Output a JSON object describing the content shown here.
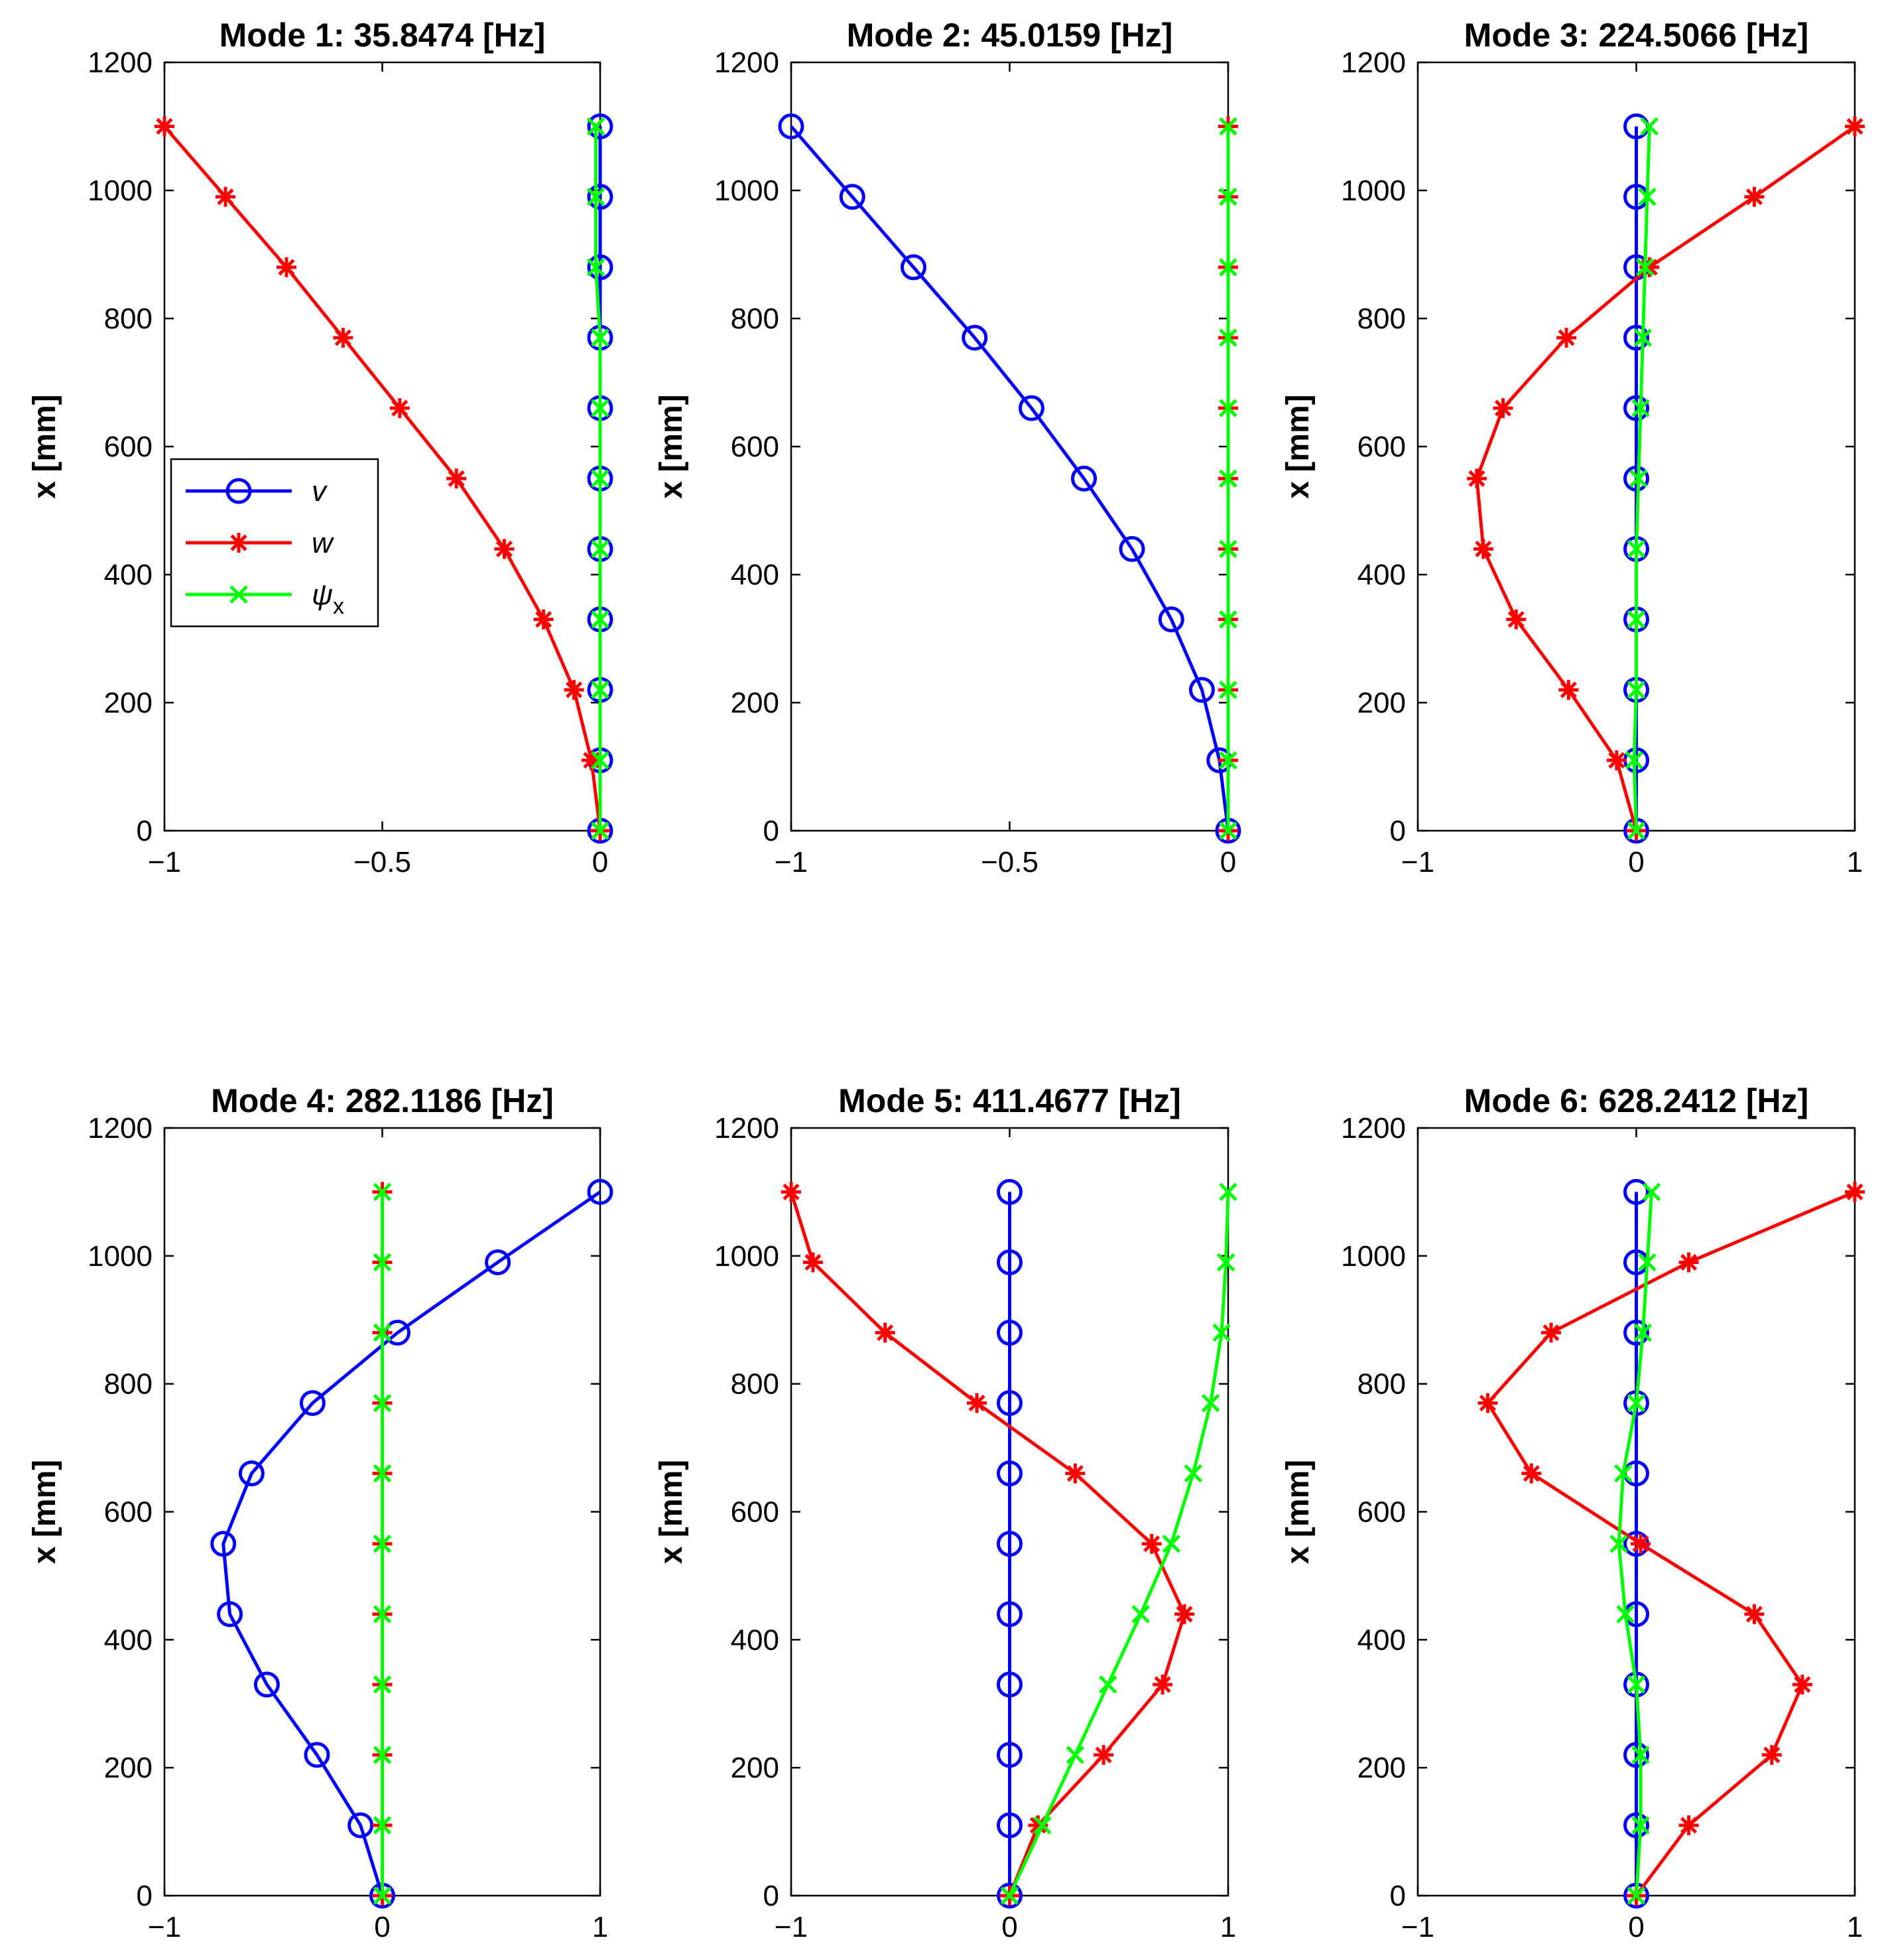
{
  "figure": {
    "colors": {
      "v": "#0000ff",
      "w": "#ff0000",
      "psi_x": "#00ff00",
      "axes": "#000000"
    }
  },
  "legend": {
    "entries": [
      {
        "key": "v",
        "label": "v",
        "marker": "circle"
      },
      {
        "key": "w",
        "label": "w",
        "marker": "asterisk"
      },
      {
        "key": "psi_x",
        "label": "ψ",
        "subscript": "x",
        "marker": "cross"
      }
    ],
    "placement": "left-middle of first subplot"
  },
  "chart_data": [
    {
      "type": "line",
      "title": "Mode 1: 35.8474 [Hz]",
      "ylabel": "x [mm]",
      "xlabel": "",
      "xlim": [
        -1,
        0
      ],
      "ylim": [
        0,
        1200
      ],
      "xticks": [
        -1,
        -0.5,
        0
      ],
      "xtick_labels": [
        "−1",
        "−0.5",
        "0"
      ],
      "yticks": [
        0,
        200,
        400,
        600,
        800,
        1000,
        1200
      ],
      "ytick_labels": [
        "0",
        "200",
        "400",
        "600",
        "800",
        "1000",
        "1200"
      ],
      "x": [
        0,
        110,
        220,
        330,
        440,
        550,
        660,
        770,
        880,
        990,
        1100
      ],
      "show_legend": true,
      "series": [
        {
          "name": "v",
          "key": "v",
          "values": [
            0,
            0,
            0,
            0,
            0,
            0,
            0,
            0,
            0,
            0,
            0
          ]
        },
        {
          "name": "w",
          "key": "w",
          "values": [
            0,
            -0.02,
            -0.06,
            -0.13,
            -0.22,
            -0.33,
            -0.46,
            -0.59,
            -0.72,
            -0.86,
            -1.0
          ]
        },
        {
          "name": "ψx",
          "key": "psi_x",
          "values": [
            0,
            0,
            0,
            0,
            0,
            0,
            0,
            0,
            -0.01,
            -0.01,
            -0.01
          ]
        }
      ]
    },
    {
      "type": "line",
      "title": "Mode 2: 45.0159 [Hz]",
      "ylabel": "x [mm]",
      "xlabel": "",
      "xlim": [
        -1,
        0
      ],
      "ylim": [
        0,
        1200
      ],
      "xticks": [
        -1,
        -0.5,
        0
      ],
      "xtick_labels": [
        "−1",
        "−0.5",
        "0"
      ],
      "yticks": [
        0,
        200,
        400,
        600,
        800,
        1000,
        1200
      ],
      "ytick_labels": [
        "0",
        "200",
        "400",
        "600",
        "800",
        "1000",
        "1200"
      ],
      "x": [
        0,
        110,
        220,
        330,
        440,
        550,
        660,
        770,
        880,
        990,
        1100
      ],
      "show_legend": false,
      "series": [
        {
          "name": "v",
          "key": "v",
          "values": [
            0,
            -0.02,
            -0.06,
            -0.13,
            -0.22,
            -0.33,
            -0.45,
            -0.58,
            -0.72,
            -0.86,
            -1.0
          ]
        },
        {
          "name": "w",
          "key": "w",
          "values": [
            0,
            0,
            0,
            0,
            0,
            0,
            0,
            0,
            0,
            0,
            0
          ]
        },
        {
          "name": "ψx",
          "key": "psi_x",
          "values": [
            0,
            0,
            0,
            0,
            0,
            0,
            0,
            0,
            0,
            0,
            0
          ]
        }
      ]
    },
    {
      "type": "line",
      "title": "Mode 3: 224.5066 [Hz]",
      "ylabel": "x [mm]",
      "xlabel": "",
      "xlim": [
        -1,
        1
      ],
      "ylim": [
        0,
        1200
      ],
      "xticks": [
        -1,
        0,
        1
      ],
      "xtick_labels": [
        "−1",
        "0",
        "1"
      ],
      "yticks": [
        0,
        200,
        400,
        600,
        800,
        1000,
        1200
      ],
      "ytick_labels": [
        "0",
        "200",
        "400",
        "600",
        "800",
        "1000",
        "1200"
      ],
      "x": [
        0,
        110,
        220,
        330,
        440,
        550,
        660,
        770,
        880,
        990,
        1100
      ],
      "show_legend": false,
      "series": [
        {
          "name": "v",
          "key": "v",
          "values": [
            0,
            0,
            0,
            0,
            0,
            0,
            0,
            0,
            0,
            0,
            0
          ]
        },
        {
          "name": "w",
          "key": "w",
          "values": [
            0,
            -0.09,
            -0.31,
            -0.55,
            -0.7,
            -0.73,
            -0.61,
            -0.32,
            0.06,
            0.54,
            1.0
          ]
        },
        {
          "name": "ψx",
          "key": "psi_x",
          "values": [
            0,
            -0.01,
            0,
            0,
            0,
            0.01,
            0.02,
            0.03,
            0.04,
            0.05,
            0.06
          ]
        }
      ]
    },
    {
      "type": "line",
      "title": "Mode 4: 282.1186 [Hz]",
      "ylabel": "x [mm]",
      "xlabel": "",
      "xlim": [
        -1,
        1
      ],
      "ylim": [
        0,
        1200
      ],
      "xticks": [
        -1,
        0,
        1
      ],
      "xtick_labels": [
        "−1",
        "0",
        "1"
      ],
      "yticks": [
        0,
        200,
        400,
        600,
        800,
        1000,
        1200
      ],
      "ytick_labels": [
        "0",
        "200",
        "400",
        "600",
        "800",
        "1000",
        "1200"
      ],
      "x": [
        0,
        110,
        220,
        330,
        440,
        550,
        660,
        770,
        880,
        990,
        1100
      ],
      "show_legend": false,
      "series": [
        {
          "name": "v",
          "key": "v",
          "values": [
            0,
            -0.1,
            -0.3,
            -0.53,
            -0.7,
            -0.73,
            -0.6,
            -0.32,
            0.07,
            0.53,
            1.0
          ]
        },
        {
          "name": "w",
          "key": "w",
          "values": [
            0,
            0,
            0,
            0,
            0,
            0,
            0,
            0,
            0,
            0,
            0
          ]
        },
        {
          "name": "ψx",
          "key": "psi_x",
          "values": [
            0,
            0,
            0,
            0,
            0,
            0,
            0,
            0,
            0,
            0,
            0
          ]
        }
      ]
    },
    {
      "type": "line",
      "title": "Mode 5: 411.4677 [Hz]",
      "ylabel": "x [mm]",
      "xlabel": "",
      "xlim": [
        -1,
        1
      ],
      "ylim": [
        0,
        1200
      ],
      "xticks": [
        -1,
        0,
        1
      ],
      "xtick_labels": [
        "−1",
        "0",
        "1"
      ],
      "yticks": [
        0,
        200,
        400,
        600,
        800,
        1000,
        1200
      ],
      "ytick_labels": [
        "0",
        "200",
        "400",
        "600",
        "800",
        "1000",
        "1200"
      ],
      "x": [
        0,
        110,
        220,
        330,
        440,
        550,
        660,
        770,
        880,
        990,
        1100
      ],
      "show_legend": false,
      "series": [
        {
          "name": "v",
          "key": "v",
          "values": [
            0,
            0,
            0,
            0,
            0,
            0,
            0,
            0,
            0,
            0,
            0
          ]
        },
        {
          "name": "w",
          "key": "w",
          "values": [
            0,
            0.13,
            0.43,
            0.7,
            0.8,
            0.65,
            0.3,
            -0.15,
            -0.57,
            -0.9,
            -1.0
          ]
        },
        {
          "name": "ψx",
          "key": "psi_x",
          "values": [
            0,
            0.15,
            0.3,
            0.45,
            0.6,
            0.74,
            0.84,
            0.92,
            0.97,
            0.99,
            1.0
          ]
        }
      ]
    },
    {
      "type": "line",
      "title": "Mode 6: 628.2412 [Hz]",
      "ylabel": "x [mm]",
      "xlabel": "",
      "xlim": [
        -1,
        1
      ],
      "ylim": [
        0,
        1200
      ],
      "xticks": [
        -1,
        0,
        1
      ],
      "xtick_labels": [
        "−1",
        "0",
        "1"
      ],
      "yticks": [
        0,
        200,
        400,
        600,
        800,
        1000,
        1200
      ],
      "ytick_labels": [
        "0",
        "200",
        "400",
        "600",
        "800",
        "1000",
        "1200"
      ],
      "x": [
        0,
        110,
        220,
        330,
        440,
        550,
        660,
        770,
        880,
        990,
        1100
      ],
      "show_legend": false,
      "series": [
        {
          "name": "v",
          "key": "v",
          "values": [
            0,
            0,
            0,
            0,
            0,
            0,
            0,
            0,
            0,
            0,
            0
          ]
        },
        {
          "name": "w",
          "key": "w",
          "values": [
            0,
            0.24,
            0.62,
            0.76,
            0.54,
            0.02,
            -0.48,
            -0.68,
            -0.39,
            0.24,
            1.0
          ]
        },
        {
          "name": "ψx",
          "key": "psi_x",
          "values": [
            0,
            0.02,
            0.02,
            0,
            -0.05,
            -0.08,
            -0.06,
            0,
            0.03,
            0.05,
            0.07
          ]
        }
      ]
    }
  ]
}
